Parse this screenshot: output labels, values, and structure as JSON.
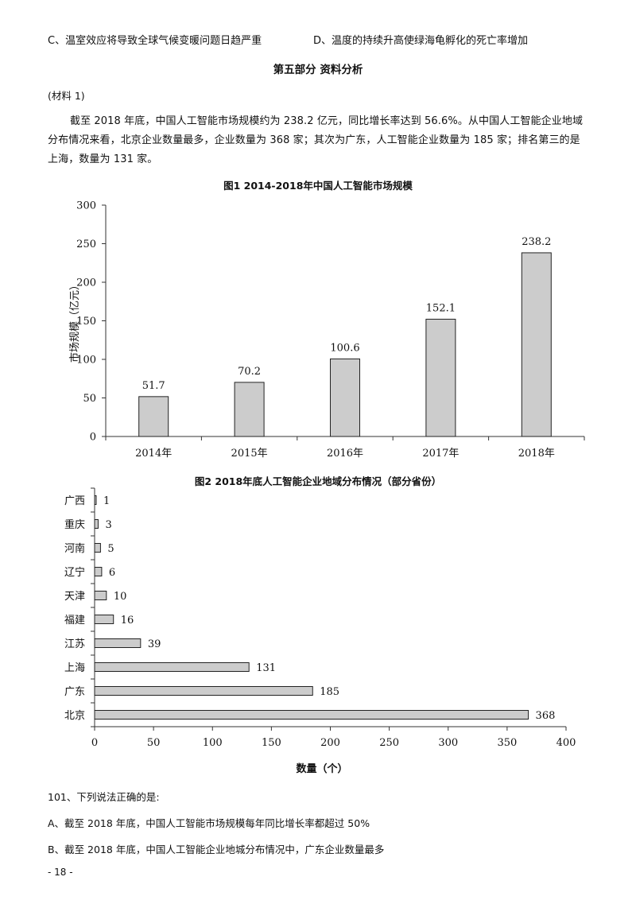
{
  "options_top": {
    "c": "C、温室效应将导致全球气候变暖问题日趋严重",
    "d": "D、温度的持续升高使绿海龟孵化的死亡率增加"
  },
  "section_title": "第五部分  资料分析",
  "material_label": "(材料 1)",
  "material_text": "截至 2018 年底，中国人工智能市场规模约为 238.2 亿元，同比增长率达到 56.6%。从中国人工智能企业地域分布情况来看，北京企业数量最多，企业数量为 368 家；其次为广东，人工智能企业数量为 185 家；排名第三的是上海，数量为 131 家。",
  "chart_data": [
    {
      "type": "bar",
      "title": "图1    2014-2018年中国人工智能市场规模",
      "categories": [
        "2014年",
        "2015年",
        "2016年",
        "2017年",
        "2018年"
      ],
      "values": [
        51.7,
        70.2,
        100.6,
        152.1,
        238.2
      ],
      "value_labels": [
        "51.7",
        "70.2",
        "100.6",
        "152.1",
        "238.2"
      ],
      "xlabel": "",
      "ylabel": "市场规模（亿元）",
      "ylim": [
        0,
        300
      ],
      "yticks": [
        "0",
        "50",
        "100",
        "150",
        "200",
        "250",
        "300"
      ],
      "bar_color": "#cccccc",
      "grid": false
    },
    {
      "type": "bar",
      "orientation": "horizontal",
      "title": "图2    2018年底人工智能企业地域分布情况（部分省份）",
      "categories": [
        "广西",
        "重庆",
        "河南",
        "辽宁",
        "天津",
        "福建",
        "江苏",
        "上海",
        "广东",
        "北京"
      ],
      "values": [
        1,
        3,
        5,
        6,
        10,
        16,
        39,
        131,
        185,
        368
      ],
      "value_labels": [
        "1",
        "3",
        "5",
        "6",
        "10",
        "16",
        "39",
        "131",
        "185",
        "368"
      ],
      "xlabel": "数量（个）",
      "ylabel": "",
      "xlim": [
        0,
        400
      ],
      "xticks": [
        "0",
        "50",
        "100",
        "150",
        "200",
        "250",
        "300",
        "350",
        "400"
      ],
      "bar_color": "#cccccc",
      "grid": false
    }
  ],
  "question": {
    "stem": "101、下列说法正确的是:",
    "a": "A、截至 2018 年底，中国人工智能市场规模每年同比增长率都超过 50%",
    "b": "B、截至 2018 年底，中国人工智能企业地城分布情况中，广东企业数量最多"
  },
  "page_number": "- 18 -"
}
